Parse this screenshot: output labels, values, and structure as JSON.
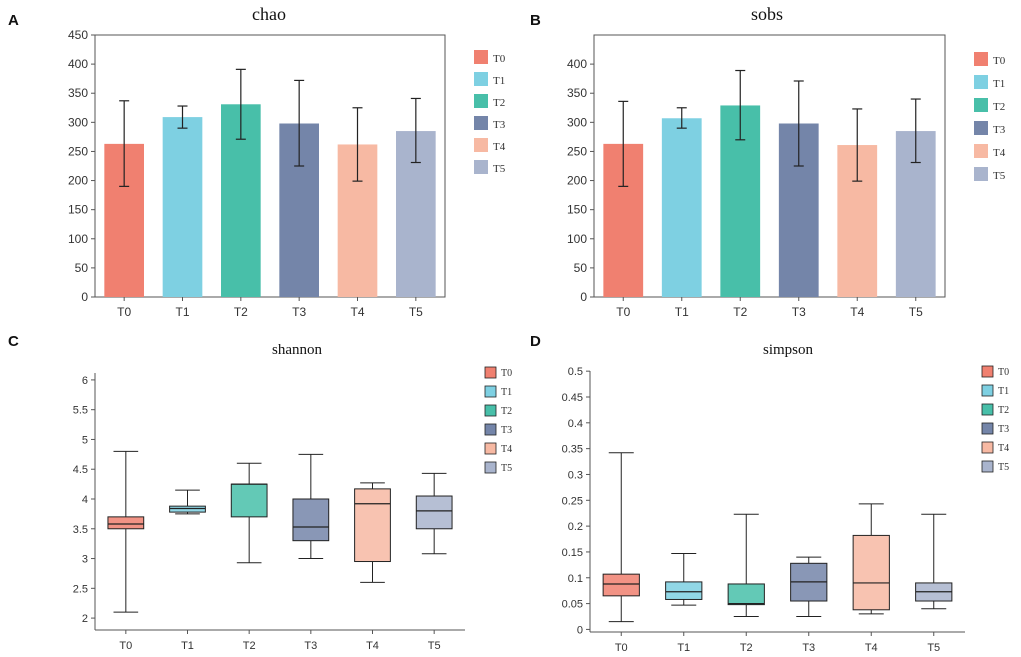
{
  "colors": {
    "T0": "#f08070",
    "T1": "#7ed0e2",
    "T2": "#48bfa9",
    "T3": "#7485a9",
    "T4": "#f7b9a3",
    "T5": "#a9b4cd",
    "axis": "#555555",
    "whisker": "#222222"
  },
  "chart_data": [
    {
      "panel": "A",
      "type": "bar",
      "title": "chao",
      "categories": [
        "T0",
        "T1",
        "T2",
        "T3",
        "T4",
        "T5"
      ],
      "values": [
        263,
        309,
        331,
        298,
        262,
        285
      ],
      "errors": [
        [
          190,
          337
        ],
        [
          290,
          328
        ],
        [
          271,
          391
        ],
        [
          225,
          372
        ],
        [
          199,
          325
        ],
        [
          231,
          341
        ]
      ],
      "ylim": [
        0,
        450
      ],
      "yticks": [
        0,
        50,
        100,
        150,
        200,
        250,
        300,
        350,
        400,
        450
      ],
      "legend": [
        "T0",
        "T1",
        "T2",
        "T3",
        "T4",
        "T5"
      ]
    },
    {
      "panel": "B",
      "type": "bar",
      "title": "sobs",
      "categories": [
        "T0",
        "T1",
        "T2",
        "T3",
        "T4",
        "T5"
      ],
      "values": [
        263,
        307,
        329,
        298,
        261,
        285
      ],
      "errors": [
        [
          190,
          336
        ],
        [
          290,
          325
        ],
        [
          270,
          389
        ],
        [
          225,
          371
        ],
        [
          199,
          323
        ],
        [
          231,
          340
        ]
      ],
      "ylim": [
        0,
        450
      ],
      "yticks": [
        0,
        50,
        100,
        150,
        200,
        250,
        300,
        350,
        400
      ],
      "legend": [
        "T0",
        "T1",
        "T2",
        "T3",
        "T4",
        "T5"
      ]
    },
    {
      "panel": "C",
      "type": "box",
      "title": "shannon",
      "categories": [
        "T0",
        "T1",
        "T2",
        "T3",
        "T4",
        "T5"
      ],
      "boxes": [
        {
          "min": 2.1,
          "q1": 3.5,
          "median": 3.58,
          "q3": 3.7,
          "max": 4.8
        },
        {
          "min": 3.75,
          "q1": 3.78,
          "median": 3.84,
          "q3": 3.88,
          "max": 4.15
        },
        {
          "min": 2.93,
          "q1": 3.7,
          "median": 4.25,
          "q3": 4.25,
          "max": 4.6
        },
        {
          "min": 3.0,
          "q1": 3.3,
          "median": 3.53,
          "q3": 4.0,
          "max": 4.75
        },
        {
          "min": 2.6,
          "q1": 2.95,
          "median": 3.92,
          "q3": 4.17,
          "max": 4.27
        },
        {
          "min": 3.08,
          "q1": 3.5,
          "median": 3.8,
          "q3": 4.05,
          "max": 4.43
        }
      ],
      "ylim": [
        1.8,
        6.2
      ],
      "yticks": [
        "2",
        "2.5",
        "3",
        "3.5",
        "4",
        "4.5",
        "5",
        "5.5",
        "6"
      ],
      "legend": [
        "T0",
        "T1",
        "T2",
        "T3",
        "T4",
        "T5"
      ]
    },
    {
      "panel": "D",
      "type": "box",
      "title": "simpson",
      "categories": [
        "T0",
        "T1",
        "T2",
        "T3",
        "T4",
        "T5"
      ],
      "boxes": [
        {
          "min": 0.015,
          "q1": 0.065,
          "median": 0.088,
          "q3": 0.107,
          "max": 0.342
        },
        {
          "min": 0.047,
          "q1": 0.058,
          "median": 0.073,
          "q3": 0.092,
          "max": 0.147
        },
        {
          "min": 0.025,
          "q1": 0.048,
          "median": 0.05,
          "q3": 0.088,
          "max": 0.223
        },
        {
          "min": 0.025,
          "q1": 0.055,
          "median": 0.092,
          "q3": 0.128,
          "max": 0.14
        },
        {
          "min": 0.03,
          "q1": 0.038,
          "median": 0.09,
          "q3": 0.182,
          "max": 0.243
        },
        {
          "min": 0.04,
          "q1": 0.055,
          "median": 0.073,
          "q3": 0.09,
          "max": 0.223
        }
      ],
      "ylim": [
        -0.005,
        0.51
      ],
      "yticks": [
        "0",
        "0.05",
        "0.1",
        "0.15",
        "0.2",
        "0.25",
        "0.3",
        "0.35",
        "0.4",
        "0.45",
        "0.5"
      ],
      "legend": [
        "T0",
        "T1",
        "T2",
        "T3",
        "T4",
        "T5"
      ]
    }
  ]
}
